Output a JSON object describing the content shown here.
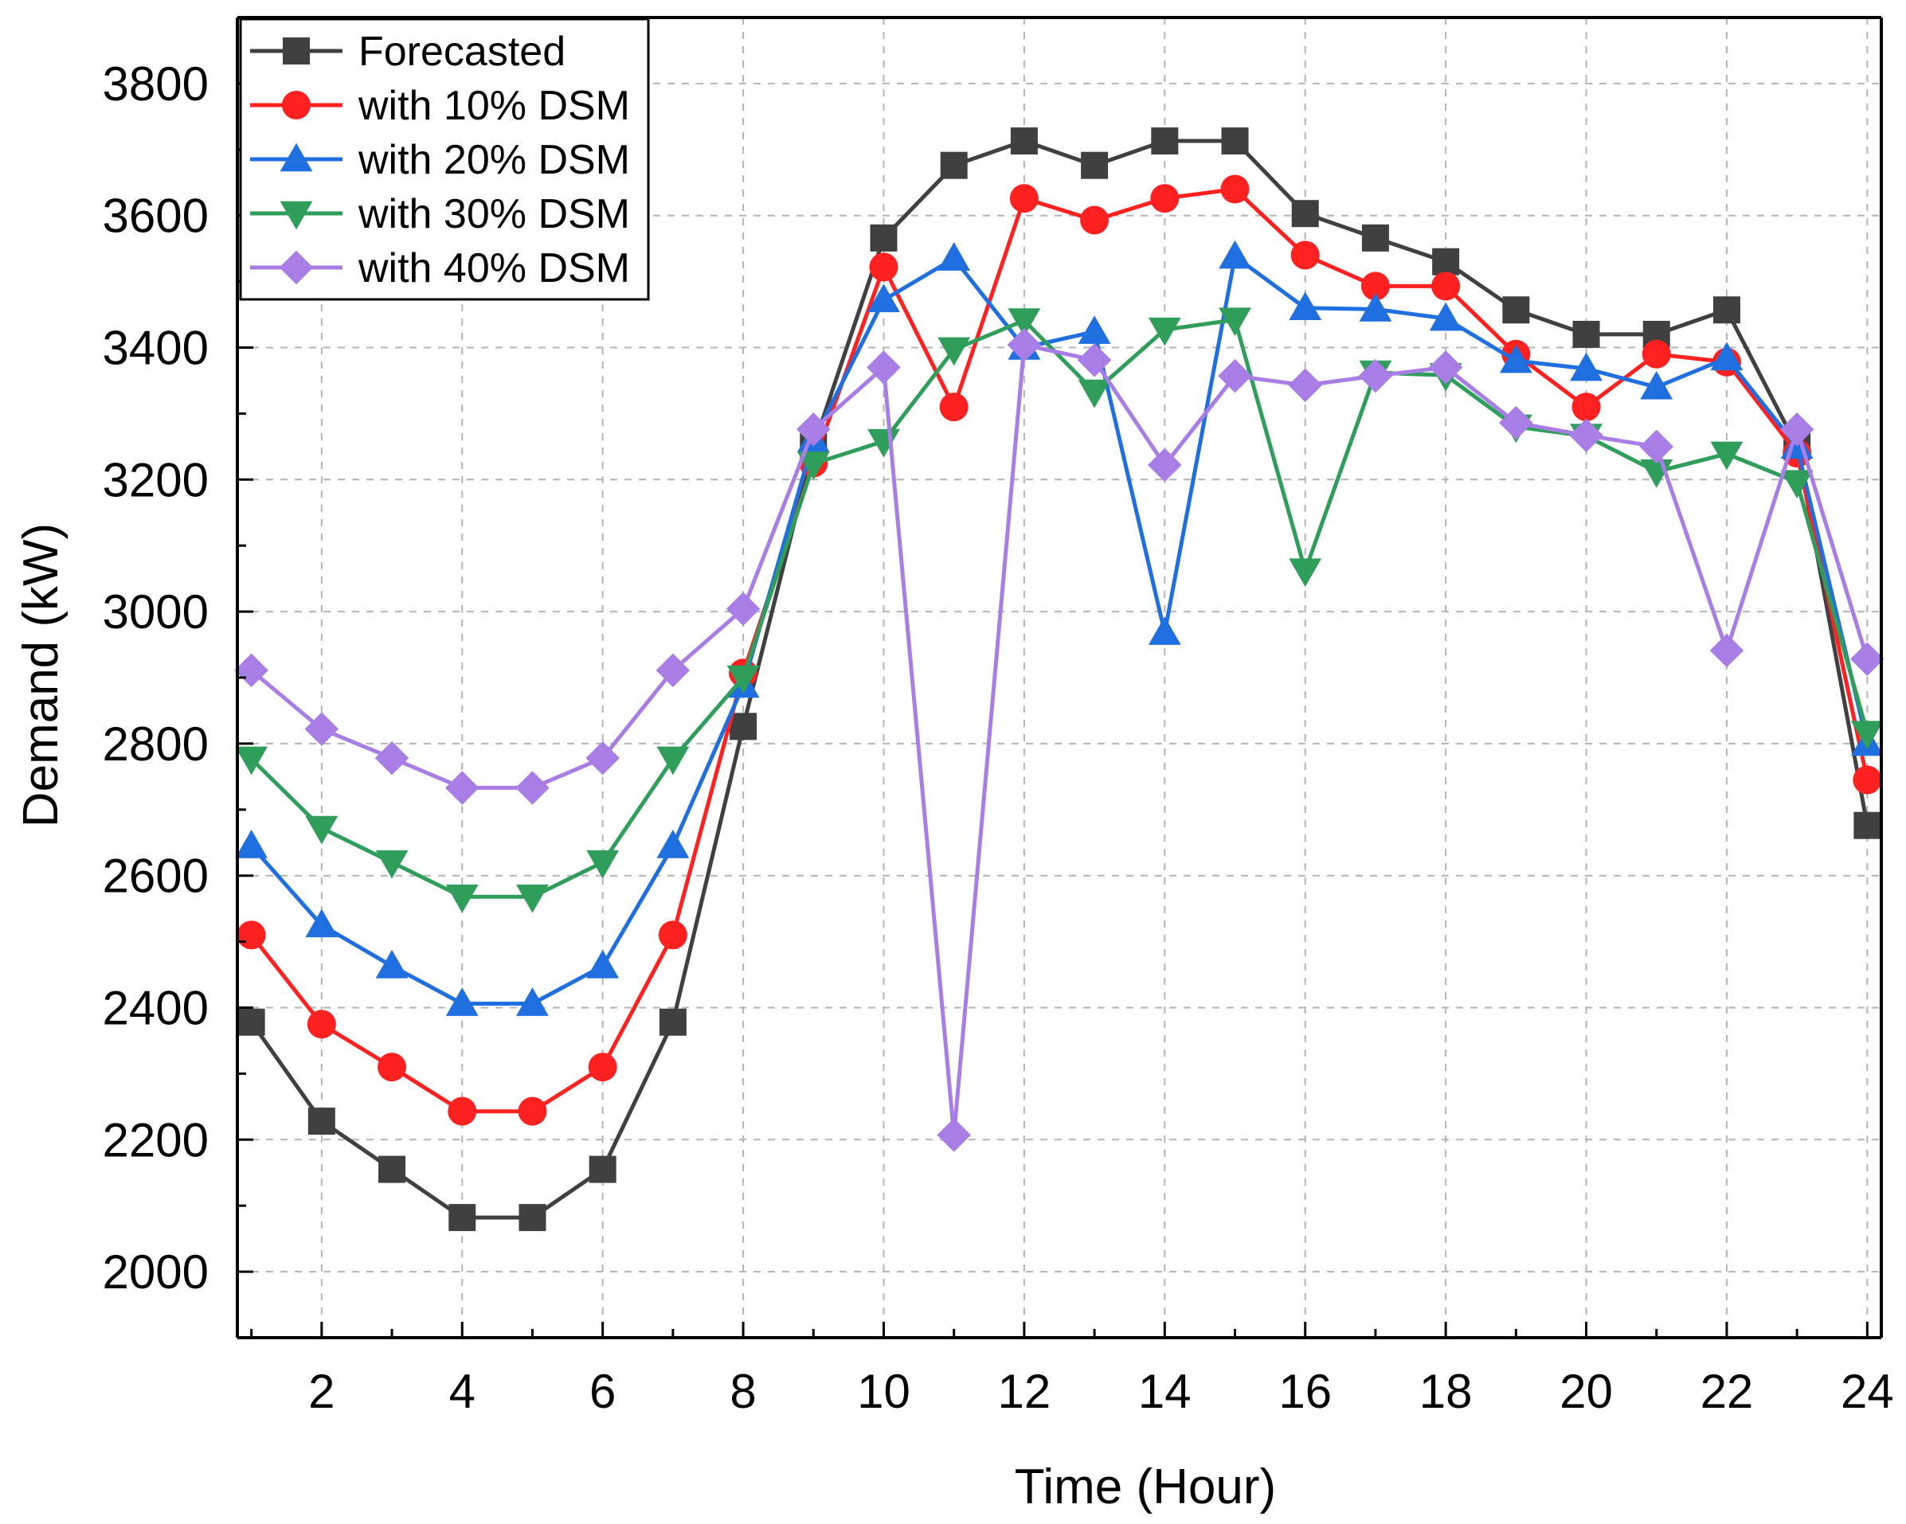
{
  "chart_data": {
    "type": "line",
    "title": "",
    "xlabel": "Time (Hour)",
    "ylabel": "Demand (kW)",
    "xlim": [
      0.8,
      24.2
    ],
    "ylim": [
      1900,
      3900
    ],
    "xticks": [
      2,
      4,
      6,
      8,
      10,
      12,
      14,
      16,
      18,
      20,
      22,
      24
    ],
    "yticks": [
      2000,
      2200,
      2400,
      2600,
      2800,
      3000,
      3200,
      3400,
      3600,
      3800
    ],
    "grid": true,
    "legend_position": "top-left",
    "x": [
      1,
      2,
      3,
      4,
      5,
      6,
      7,
      8,
      9,
      10,
      11,
      12,
      13,
      14,
      15,
      16,
      17,
      18,
      19,
      20,
      21,
      22,
      23,
      24
    ],
    "series": [
      {
        "name": "Forecasted",
        "color": "#404040",
        "marker": "square",
        "values": [
          2378,
          2228,
          2155,
          2082,
          2082,
          2155,
          2378,
          2826,
          3250,
          3566,
          3676,
          3713,
          3676,
          3713,
          3713,
          3603,
          3566,
          3530,
          3457,
          3420,
          3420,
          3457,
          3250,
          2676
        ]
      },
      {
        "name": "with 10% DSM",
        "color": "#ff2020",
        "marker": "circle",
        "values": [
          2510,
          2375,
          2310,
          2243,
          2243,
          2310,
          2510,
          2907,
          3225,
          3522,
          3310,
          3626,
          3593,
          3626,
          3640,
          3540,
          3493,
          3493,
          3390,
          3310,
          3390,
          3378,
          3240,
          2745
        ]
      },
      {
        "name": "with 20% DSM",
        "color": "#1f6fe0",
        "marker": "triangle-up",
        "values": [
          2645,
          2525,
          2463,
          2406,
          2406,
          2463,
          2645,
          2888,
          3260,
          3472,
          3535,
          3400,
          3424,
          2968,
          3538,
          3460,
          3458,
          3444,
          3380,
          3368,
          3340,
          3384,
          3250,
          2800
        ]
      },
      {
        "name": "with 30% DSM",
        "color": "#2e9e5a",
        "marker": "triangle-down",
        "values": [
          2777,
          2672,
          2620,
          2568,
          2568,
          2620,
          2777,
          2900,
          3224,
          3258,
          3397,
          3441,
          3333,
          3427,
          3442,
          3062,
          3362,
          3358,
          3280,
          3266,
          3212,
          3239,
          3196,
          2816
        ]
      },
      {
        "name": "with 40% DSM",
        "color": "#a87ee6",
        "marker": "diamond",
        "values": [
          2911,
          2822,
          2778,
          2733,
          2733,
          2778,
          2911,
          3004,
          3276,
          3370,
          2207,
          3404,
          3381,
          3222,
          3357,
          3343,
          3357,
          3370,
          3286,
          3267,
          3250,
          2941,
          3276,
          2928
        ]
      }
    ]
  }
}
